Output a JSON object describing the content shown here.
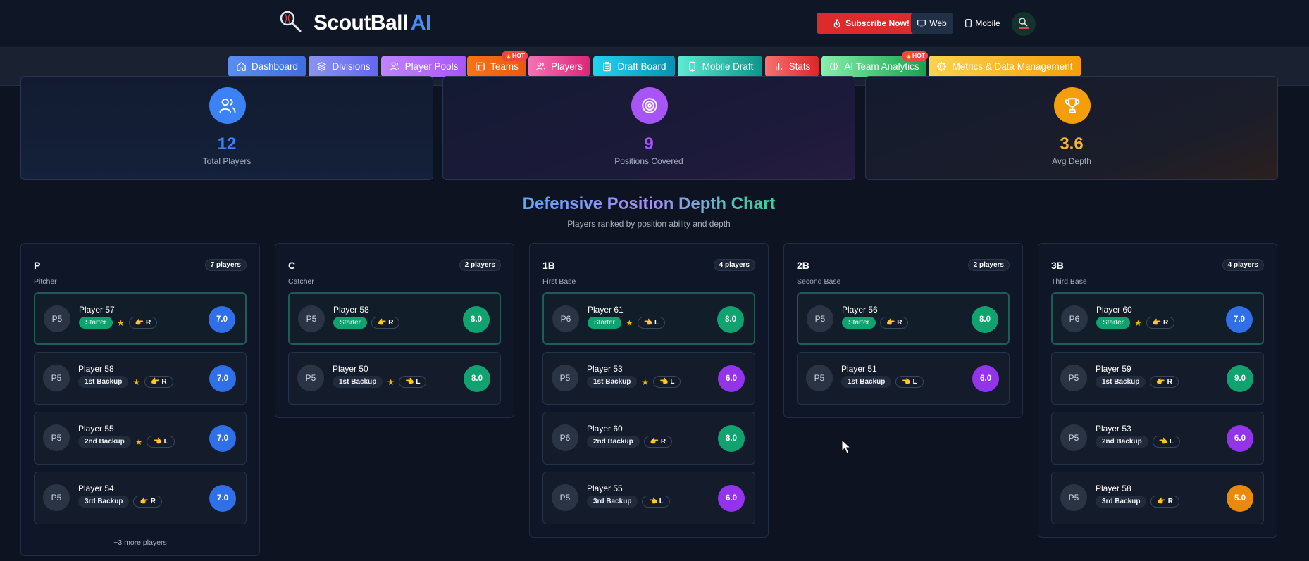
{
  "header": {
    "brand": "ScoutBall",
    "brand_ai": "AI",
    "subscribe_label": "Subscribe Now!",
    "web_label": "Web",
    "mobile_label": "Mobile"
  },
  "nav": {
    "items": [
      {
        "label": "Dashboard"
      },
      {
        "label": "Divisions"
      },
      {
        "label": "Player Pools"
      },
      {
        "label": "Teams",
        "badge": "🔥HOT"
      },
      {
        "label": "Players"
      },
      {
        "label": "Draft Board"
      },
      {
        "label": "Mobile Draft"
      },
      {
        "label": "Stats"
      },
      {
        "label": "AI Team Analytics",
        "badge": "🔥HOT"
      },
      {
        "label": "Metrics & Data Management"
      }
    ]
  },
  "stats": [
    {
      "value": "12",
      "label": "Total Players",
      "color": "#3b82f6"
    },
    {
      "value": "9",
      "label": "Positions Covered",
      "color": "#a855f7"
    },
    {
      "value": "3.6",
      "label": "Avg Depth",
      "color": "#f59e0b"
    }
  ],
  "section": {
    "title": "Defensive Position Depth Chart",
    "subtitle": "Players ranked by position ability and depth"
  },
  "positions": [
    {
      "code": "P",
      "name": "Pitcher",
      "count": "7 players",
      "more": "+3 more players",
      "players": [
        {
          "avatar": "P5",
          "name": "Player 57",
          "role": "Starter",
          "star": true,
          "hand": "👉 R",
          "score": "7.0",
          "score_color": "#2f6fe8"
        },
        {
          "avatar": "P5",
          "name": "Player 58",
          "role": "1st Backup",
          "star": true,
          "hand": "👉 R",
          "score": "7.0",
          "score_color": "#2f6fe8"
        },
        {
          "avatar": "P5",
          "name": "Player 55",
          "role": "2nd Backup",
          "star": true,
          "hand": "👈 L",
          "score": "7.0",
          "score_color": "#2f6fe8"
        },
        {
          "avatar": "P5",
          "name": "Player 54",
          "role": "3rd Backup",
          "star": false,
          "hand": "👉 R",
          "score": "7.0",
          "score_color": "#2f6fe8"
        }
      ]
    },
    {
      "code": "C",
      "name": "Catcher",
      "count": "2 players",
      "players": [
        {
          "avatar": "P5",
          "name": "Player 58",
          "role": "Starter",
          "star": false,
          "hand": "👉 R",
          "score": "8.0",
          "score_color": "#10a36f"
        },
        {
          "avatar": "P5",
          "name": "Player 50",
          "role": "1st Backup",
          "star": true,
          "hand": "👈 L",
          "score": "8.0",
          "score_color": "#10a36f"
        }
      ]
    },
    {
      "code": "1B",
      "name": "First Base",
      "count": "4 players",
      "players": [
        {
          "avatar": "P6",
          "name": "Player 61",
          "role": "Starter",
          "star": true,
          "hand": "👈 L",
          "score": "8.0",
          "score_color": "#10a36f"
        },
        {
          "avatar": "P5",
          "name": "Player 53",
          "role": "1st Backup",
          "star": true,
          "hand": "👈 L",
          "score": "6.0",
          "score_color": "#9333ea"
        },
        {
          "avatar": "P6",
          "name": "Player 60",
          "role": "2nd Backup",
          "star": false,
          "hand": "👉 R",
          "score": "8.0",
          "score_color": "#10a36f"
        },
        {
          "avatar": "P5",
          "name": "Player 55",
          "role": "3rd Backup",
          "star": false,
          "hand": "👈 L",
          "score": "6.0",
          "score_color": "#9333ea"
        }
      ]
    },
    {
      "code": "2B",
      "name": "Second Base",
      "count": "2 players",
      "players": [
        {
          "avatar": "P5",
          "name": "Player 56",
          "role": "Starter",
          "star": false,
          "hand": "👉 R",
          "score": "8.0",
          "score_color": "#10a36f"
        },
        {
          "avatar": "P5",
          "name": "Player 51",
          "role": "1st Backup",
          "star": false,
          "hand": "👈 L",
          "score": "6.0",
          "score_color": "#9333ea"
        }
      ]
    },
    {
      "code": "3B",
      "name": "Third Base",
      "count": "4 players",
      "players": [
        {
          "avatar": "P6",
          "name": "Player 60",
          "role": "Starter",
          "star": true,
          "hand": "👉 R",
          "score": "7.0",
          "score_color": "#2f6fe8"
        },
        {
          "avatar": "P5",
          "name": "Player 59",
          "role": "1st Backup",
          "star": false,
          "hand": "👉 R",
          "score": "9.0",
          "score_color": "#10a36f"
        },
        {
          "avatar": "P5",
          "name": "Player 53",
          "role": "2nd Backup",
          "star": false,
          "hand": "👈 L",
          "score": "6.0",
          "score_color": "#9333ea"
        },
        {
          "avatar": "P5",
          "name": "Player 58",
          "role": "3rd Backup",
          "star": false,
          "hand": "👉 R",
          "score": "5.0",
          "score_color": "#ea8a0c"
        }
      ]
    }
  ]
}
